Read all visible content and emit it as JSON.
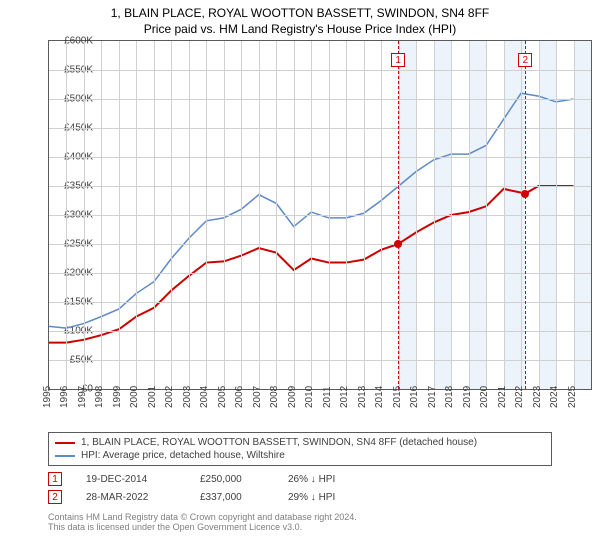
{
  "title": "1, BLAIN PLACE, ROYAL WOOTTON BASSETT, SWINDON, SN4 8FF",
  "subtitle": "Price paid vs. HM Land Registry's House Price Index (HPI)",
  "chart": {
    "type": "line",
    "background_color": "#ffffff",
    "grid_color": "#d0d0d0",
    "border_color": "#5a5a5a",
    "shade_color": "#ecf3fb",
    "xlim": [
      1995,
      2026
    ],
    "ylim": [
      0,
      600000
    ],
    "ytick_step": 50000,
    "y_ticks": [
      "£0",
      "£50K",
      "£100K",
      "£150K",
      "£200K",
      "£250K",
      "£300K",
      "£350K",
      "£400K",
      "£450K",
      "£500K",
      "£550K",
      "£600K"
    ],
    "x_ticks": [
      1995,
      1996,
      1997,
      1998,
      1999,
      2000,
      2001,
      2002,
      2003,
      2004,
      2005,
      2006,
      2007,
      2008,
      2009,
      2010,
      2011,
      2012,
      2013,
      2014,
      2015,
      2016,
      2017,
      2018,
      2019,
      2020,
      2021,
      2022,
      2023,
      2024,
      2025
    ],
    "shade_ranges": [
      [
        2014.97,
        2016
      ],
      [
        2017,
        2018
      ],
      [
        2019,
        2020
      ],
      [
        2021,
        2022.24
      ],
      [
        2023,
        2024
      ],
      [
        2025,
        2026
      ]
    ],
    "markers": [
      {
        "label": "1",
        "x": 2014.97,
        "y_box": 12
      },
      {
        "label": "2",
        "x": 2022.24,
        "y_box": 12
      }
    ],
    "series": [
      {
        "name": "property",
        "color": "#cc0000",
        "width": 2,
        "legend": "1, BLAIN PLACE, ROYAL WOOTTON BASSETT, SWINDON, SN4 8FF (detached house)",
        "points": [
          [
            1995,
            80000
          ],
          [
            1996,
            80000
          ],
          [
            1997,
            85000
          ],
          [
            1998,
            93000
          ],
          [
            1999,
            103000
          ],
          [
            2000,
            125000
          ],
          [
            2001,
            140000
          ],
          [
            2002,
            170000
          ],
          [
            2003,
            195000
          ],
          [
            2004,
            218000
          ],
          [
            2005,
            220000
          ],
          [
            2006,
            230000
          ],
          [
            2007,
            243000
          ],
          [
            2008,
            235000
          ],
          [
            2009,
            205000
          ],
          [
            2010,
            225000
          ],
          [
            2011,
            218000
          ],
          [
            2012,
            218000
          ],
          [
            2013,
            223000
          ],
          [
            2014,
            240000
          ],
          [
            2014.97,
            250000
          ],
          [
            2016,
            270000
          ],
          [
            2017,
            287000
          ],
          [
            2018,
            300000
          ],
          [
            2019,
            305000
          ],
          [
            2020,
            315000
          ],
          [
            2021,
            345000
          ],
          [
            2022.24,
            337000
          ],
          [
            2023,
            350000
          ],
          [
            2024,
            350000
          ],
          [
            2025,
            350000
          ]
        ]
      },
      {
        "name": "hpi",
        "color": "#5e8ac7",
        "width": 1.5,
        "legend": "HPI: Average price, detached house, Wiltshire",
        "points": [
          [
            1995,
            108000
          ],
          [
            1996,
            105000
          ],
          [
            1997,
            113000
          ],
          [
            1998,
            125000
          ],
          [
            1999,
            138000
          ],
          [
            2000,
            165000
          ],
          [
            2001,
            185000
          ],
          [
            2002,
            225000
          ],
          [
            2003,
            260000
          ],
          [
            2004,
            290000
          ],
          [
            2005,
            295000
          ],
          [
            2006,
            310000
          ],
          [
            2007,
            335000
          ],
          [
            2008,
            320000
          ],
          [
            2009,
            280000
          ],
          [
            2010,
            305000
          ],
          [
            2011,
            295000
          ],
          [
            2012,
            295000
          ],
          [
            2013,
            303000
          ],
          [
            2014,
            325000
          ],
          [
            2015,
            350000
          ],
          [
            2016,
            375000
          ],
          [
            2017,
            395000
          ],
          [
            2018,
            405000
          ],
          [
            2019,
            405000
          ],
          [
            2020,
            420000
          ],
          [
            2021,
            465000
          ],
          [
            2022,
            510000
          ],
          [
            2023,
            505000
          ],
          [
            2024,
            495000
          ],
          [
            2025,
            500000
          ]
        ]
      }
    ],
    "sale_points": [
      {
        "x": 2014.97,
        "y": 250000,
        "color": "#cc0000"
      },
      {
        "x": 2022.24,
        "y": 337000,
        "color": "#cc0000"
      }
    ]
  },
  "sales": [
    {
      "marker": "1",
      "date": "19-DEC-2014",
      "price": "£250,000",
      "diff": "26% ↓ HPI"
    },
    {
      "marker": "2",
      "date": "28-MAR-2022",
      "price": "£337,000",
      "diff": "29% ↓ HPI"
    }
  ],
  "footer": {
    "line1": "Contains HM Land Registry data © Crown copyright and database right 2024.",
    "line2": "This data is licensed under the Open Government Licence v3.0."
  }
}
